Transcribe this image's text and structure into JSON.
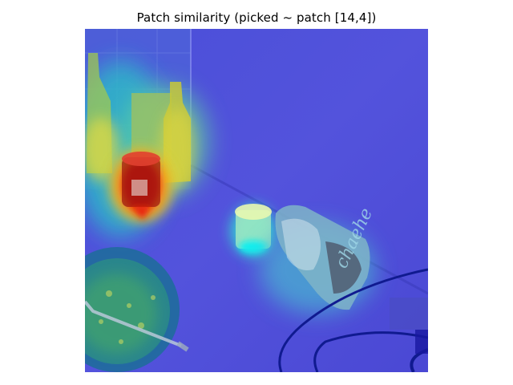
{
  "figure": {
    "title": "Patch similarity (picked ~ patch [14,4])"
  },
  "image": {
    "description_icon": "similarity-heatmap-overlay",
    "colormap": "jet",
    "colors": {
      "low": "#3a3fd6",
      "mid_low": "#2f6fe0",
      "mid": "#3fd0e0",
      "mid_high": "#d8e040",
      "high": "#d02018"
    }
  }
}
